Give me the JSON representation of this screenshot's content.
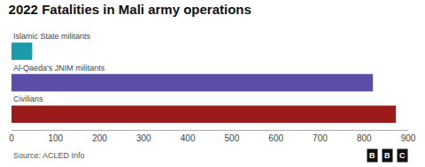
{
  "chart_data": {
    "type": "bar",
    "orientation": "horizontal",
    "title": "2022 Fatalities in Mali army operations",
    "categories": [
      "Civilians",
      "Al-Qaeda's JNIM militants",
      "Islamic State militants"
    ],
    "values": [
      872,
      820,
      47
    ],
    "colors": [
      "#9b1a1a",
      "#5b4ea8",
      "#1a9aaa"
    ],
    "xlim": [
      0,
      900
    ],
    "xticks": [
      0,
      100,
      200,
      300,
      400,
      500,
      600,
      700,
      800,
      900
    ],
    "grid": false,
    "tick_labels": "x",
    "annotations": [
      "Source: ACLED Info",
      "B",
      "B",
      "C"
    ]
  }
}
